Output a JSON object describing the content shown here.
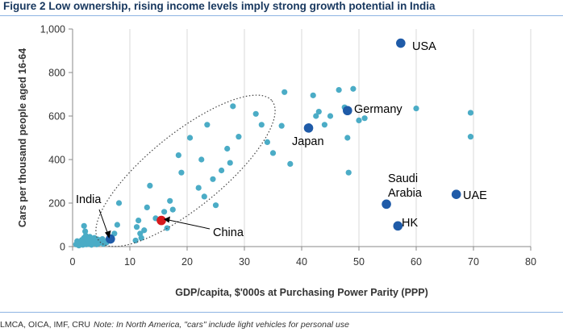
{
  "figure": {
    "title": "Figure 2 Low ownership, rising income levels imply strong growth potential in India",
    "source": "LMCA, OICA, IMF, CRU",
    "note": "Note: In North America, \"cars\" include light vehicles for personal use"
  },
  "colors": {
    "scatter": "#4bacc6",
    "highlight": "#1f5ba8",
    "china": "#d7191c",
    "title": "#17375e"
  },
  "chart_data": {
    "type": "scatter",
    "title": "",
    "xlabel": "GDP/capita, $'000s at Purchasing Power Parity (PPP)",
    "ylabel": "Cars per thousand people aged 16-64",
    "xlim": [
      0,
      80
    ],
    "ylim": [
      0,
      1000
    ],
    "x_ticks": [
      "0",
      "10",
      "20",
      "30",
      "40",
      "50",
      "60",
      "70",
      "80"
    ],
    "y_ticks": [
      "0",
      "200",
      "400",
      "600",
      "800",
      "1,000"
    ],
    "grid": {
      "horizontal": false,
      "vertical": true
    },
    "other_countries": [
      [
        0.6,
        10
      ],
      [
        0.8,
        25
      ],
      [
        1.1,
        5
      ],
      [
        1.3,
        15
      ],
      [
        1.6,
        30
      ],
      [
        1.8,
        8
      ],
      [
        2.0,
        40
      ],
      [
        2.1,
        20
      ],
      [
        2.3,
        50
      ],
      [
        2.4,
        10
      ],
      [
        2.5,
        35
      ],
      [
        2.7,
        28
      ],
      [
        2.9,
        12
      ],
      [
        3.0,
        45
      ],
      [
        3.1,
        22
      ],
      [
        3.3,
        8
      ],
      [
        3.5,
        30
      ],
      [
        3.6,
        18
      ],
      [
        3.8,
        40
      ],
      [
        4.0,
        25
      ],
      [
        4.2,
        10
      ],
      [
        4.4,
        33
      ],
      [
        4.6,
        15
      ],
      [
        4.8,
        28
      ],
      [
        5.0,
        20
      ],
      [
        5.2,
        35
      ],
      [
        5.4,
        12
      ],
      [
        5.6,
        25
      ],
      [
        5.9,
        18
      ],
      [
        6.2,
        30
      ],
      [
        2.0,
        95
      ],
      [
        2.2,
        70
      ],
      [
        7.3,
        60
      ],
      [
        7.8,
        100
      ],
      [
        8.1,
        200
      ],
      [
        11.0,
        28
      ],
      [
        11.2,
        90
      ],
      [
        11.5,
        120
      ],
      [
        11.8,
        60
      ],
      [
        12.0,
        40
      ],
      [
        12.5,
        75
      ],
      [
        13.0,
        180
      ],
      [
        13.5,
        280
      ],
      [
        14.5,
        130
      ],
      [
        16.0,
        160
      ],
      [
        16.5,
        85
      ],
      [
        17.0,
        210
      ],
      [
        17.5,
        170
      ],
      [
        18.5,
        420
      ],
      [
        19.0,
        340
      ],
      [
        20.5,
        500
      ],
      [
        22.0,
        270
      ],
      [
        22.5,
        400
      ],
      [
        23.0,
        230
      ],
      [
        23.5,
        560
      ],
      [
        24.5,
        310
      ],
      [
        25.0,
        190
      ],
      [
        26.0,
        350
      ],
      [
        27.0,
        450
      ],
      [
        27.5,
        385
      ],
      [
        28.0,
        645
      ],
      [
        29.0,
        505
      ],
      [
        32.0,
        610
      ],
      [
        33.0,
        560
      ],
      [
        34.0,
        480
      ],
      [
        35.0,
        430
      ],
      [
        36.5,
        555
      ],
      [
        37.0,
        710
      ],
      [
        38.0,
        380
      ],
      [
        42.0,
        695
      ],
      [
        42.5,
        600
      ],
      [
        43.0,
        620
      ],
      [
        44.0,
        560
      ],
      [
        45.0,
        600
      ],
      [
        46.5,
        720
      ],
      [
        47.5,
        640
      ],
      [
        48.0,
        500
      ],
      [
        48.2,
        340
      ],
      [
        49.0,
        725
      ],
      [
        50.0,
        580
      ],
      [
        51.0,
        590
      ],
      [
        60.0,
        635
      ],
      [
        69.5,
        615
      ],
      [
        69.5,
        505
      ]
    ],
    "highlighted": [
      {
        "label": "USA",
        "x": 57.3,
        "y": 935
      },
      {
        "label": "Germany",
        "x": 48.0,
        "y": 625
      },
      {
        "label": "Japan",
        "x": 41.2,
        "y": 545
      },
      {
        "label": "Saudi Arabia",
        "label_lines": [
          "Saudi",
          "Arabia"
        ],
        "x": 54.8,
        "y": 195
      },
      {
        "label": "UAE",
        "x": 67.0,
        "y": 240
      },
      {
        "label": "HK",
        "x": 56.8,
        "y": 95
      },
      {
        "label": "India",
        "x": 6.6,
        "y": 35
      },
      {
        "label": "China",
        "x": 15.5,
        "y": 120
      }
    ]
  }
}
